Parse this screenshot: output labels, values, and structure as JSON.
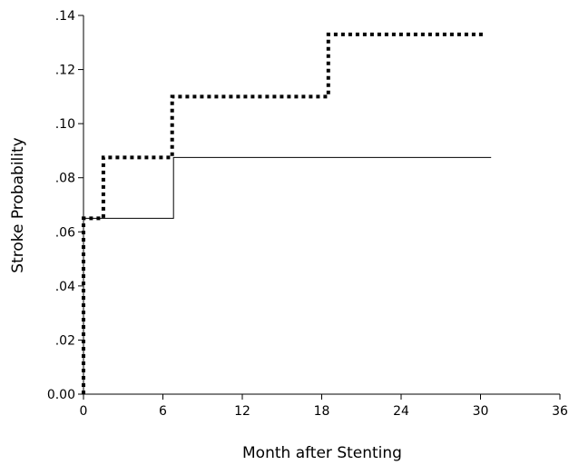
{
  "chart_data": {
    "type": "line",
    "step": true,
    "xlabel": "Month after Stenting",
    "ylabel": "Stroke Probability",
    "xlim": [
      0,
      36
    ],
    "ylim": [
      0,
      0.14
    ],
    "x_ticks": [
      0,
      6,
      12,
      18,
      24,
      30,
      36
    ],
    "x_tick_labels": [
      "0",
      "6",
      "12",
      "18",
      "24",
      "30",
      "36"
    ],
    "y_ticks": [
      0,
      0.02,
      0.04,
      0.06,
      0.08,
      0.1,
      0.12,
      0.14
    ],
    "y_tick_labels": [
      "0.00",
      ".02",
      ".04",
      ".06",
      ".08",
      ".10",
      ".12",
      ".14"
    ],
    "grid": false,
    "series": [
      {
        "style": "dotted",
        "color": "#000000",
        "points": [
          [
            0,
            0
          ],
          [
            0,
            0.065
          ],
          [
            1.5,
            0.065
          ],
          [
            1.5,
            0.0875
          ],
          [
            6.7,
            0.0875
          ],
          [
            6.7,
            0.11
          ],
          [
            18.5,
            0.11
          ],
          [
            18.5,
            0.133
          ],
          [
            30.2,
            0.133
          ]
        ]
      },
      {
        "style": "solid",
        "color": "#000000",
        "points": [
          [
            0,
            0
          ],
          [
            0,
            0.065
          ],
          [
            6.8,
            0.065
          ],
          [
            6.8,
            0.0875
          ],
          [
            30.8,
            0.0875
          ]
        ]
      }
    ]
  }
}
